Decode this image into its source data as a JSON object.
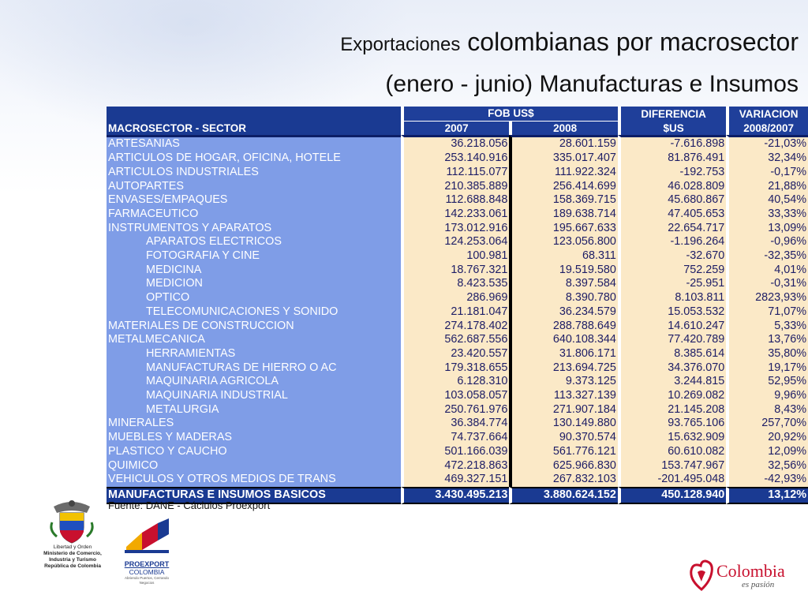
{
  "title": {
    "line1_small": "Exportaciones",
    "line1_large": "colombianas por macrosector",
    "line2": "(enero - junio) Manufacturas e Insumos"
  },
  "table": {
    "header": {
      "col1": "MACROSECTOR - SECTOR",
      "fob_group": "FOB US$",
      "col2": "2007",
      "col3": "2008",
      "col4_top": "DIFERENCIA",
      "col4_bot": "$US",
      "col5_top": "VARIACION",
      "col5_bot": "2008/2007"
    },
    "rows": [
      {
        "sector": "ARTESANIAS",
        "indent": false,
        "y2007": "36.218.056",
        "y2008": "28.601.159",
        "dif": "-7.616.898",
        "var": "-21,03%"
      },
      {
        "sector": "ARTICULOS DE HOGAR, OFICINA, HOTELE",
        "indent": false,
        "y2007": "253.140.916",
        "y2008": "335.017.407",
        "dif": "81.876.491",
        "var": "32,34%"
      },
      {
        "sector": "ARTICULOS INDUSTRIALES",
        "indent": false,
        "y2007": "112.115.077",
        "y2008": "111.922.324",
        "dif": "-192.753",
        "var": "-0,17%"
      },
      {
        "sector": "AUTOPARTES",
        "indent": false,
        "y2007": "210.385.889",
        "y2008": "256.414.699",
        "dif": "46.028.809",
        "var": "21,88%"
      },
      {
        "sector": "ENVASES/EMPAQUES",
        "indent": false,
        "y2007": "112.688.848",
        "y2008": "158.369.715",
        "dif": "45.680.867",
        "var": "40,54%"
      },
      {
        "sector": "FARMACEUTICO",
        "indent": false,
        "y2007": "142.233.061",
        "y2008": "189.638.714",
        "dif": "47.405.653",
        "var": "33,33%"
      },
      {
        "sector": "INSTRUMENTOS Y APARATOS",
        "indent": false,
        "y2007": "173.012.916",
        "y2008": "195.667.633",
        "dif": "22.654.717",
        "var": "13,09%"
      },
      {
        "sector": "APARATOS ELECTRICOS",
        "indent": true,
        "y2007": "124.253.064",
        "y2008": "123.056.800",
        "dif": "-1.196.264",
        "var": "-0,96%"
      },
      {
        "sector": "FOTOGRAFIA Y CINE",
        "indent": true,
        "y2007": "100.981",
        "y2008": "68.311",
        "dif": "-32.670",
        "var": "-32,35%"
      },
      {
        "sector": "MEDICINA",
        "indent": true,
        "y2007": "18.767.321",
        "y2008": "19.519.580",
        "dif": "752.259",
        "var": "4,01%"
      },
      {
        "sector": "MEDICION",
        "indent": true,
        "y2007": "8.423.535",
        "y2008": "8.397.584",
        "dif": "-25.951",
        "var": "-0,31%"
      },
      {
        "sector": "OPTICO",
        "indent": true,
        "y2007": "286.969",
        "y2008": "8.390.780",
        "dif": "8.103.811",
        "var": "2823,93%"
      },
      {
        "sector": "TELECOMUNICACIONES Y SONIDO",
        "indent": true,
        "y2007": "21.181.047",
        "y2008": "36.234.579",
        "dif": "15.053.532",
        "var": "71,07%"
      },
      {
        "sector": "MATERIALES DE CONSTRUCCION",
        "indent": false,
        "y2007": "274.178.402",
        "y2008": "288.788.649",
        "dif": "14.610.247",
        "var": "5,33%"
      },
      {
        "sector": "METALMECANICA",
        "indent": false,
        "y2007": "562.687.556",
        "y2008": "640.108.344",
        "dif": "77.420.789",
        "var": "13,76%"
      },
      {
        "sector": "HERRAMIENTAS",
        "indent": true,
        "y2007": "23.420.557",
        "y2008": "31.806.171",
        "dif": "8.385.614",
        "var": "35,80%"
      },
      {
        "sector": "MANUFACTURAS DE HIERRO O AC",
        "indent": true,
        "y2007": "179.318.655",
        "y2008": "213.694.725",
        "dif": "34.376.070",
        "var": "19,17%"
      },
      {
        "sector": "MAQUINARIA AGRICOLA",
        "indent": true,
        "y2007": "6.128.310",
        "y2008": "9.373.125",
        "dif": "3.244.815",
        "var": "52,95%"
      },
      {
        "sector": "MAQUINARIA INDUSTRIAL",
        "indent": true,
        "y2007": "103.058.057",
        "y2008": "113.327.139",
        "dif": "10.269.082",
        "var": "9,96%"
      },
      {
        "sector": "METALURGIA",
        "indent": true,
        "y2007": "250.761.976",
        "y2008": "271.907.184",
        "dif": "21.145.208",
        "var": "8,43%"
      },
      {
        "sector": "MINERALES",
        "indent": false,
        "y2007": "36.384.774",
        "y2008": "130.149.880",
        "dif": "93.765.106",
        "var": "257,70%"
      },
      {
        "sector": "MUEBLES Y MADERAS",
        "indent": false,
        "y2007": "74.737.664",
        "y2008": "90.370.574",
        "dif": "15.632.909",
        "var": "20,92%"
      },
      {
        "sector": "PLASTICO Y CAUCHO",
        "indent": false,
        "y2007": "501.166.039",
        "y2008": "561.776.121",
        "dif": "60.610.082",
        "var": "12,09%"
      },
      {
        "sector": "QUIMICO",
        "indent": false,
        "y2007": "472.218.863",
        "y2008": "625.966.830",
        "dif": "153.747.967",
        "var": "32,56%"
      },
      {
        "sector": "VEHICULOS Y OTROS MEDIOS DE TRANS",
        "indent": false,
        "y2007": "469.327.151",
        "y2008": "267.832.103",
        "dif": "-201.495.048",
        "var": "-42,93%"
      }
    ],
    "total": {
      "sector": "MANUFACTURAS E INSUMOS BASICOS",
      "y2007": "3.430.495.213",
      "y2008": "3.880.624.152",
      "dif": "450.128.940",
      "var": "13,12%"
    }
  },
  "source": "Fuente: DANE - Cáclulos Proexport",
  "logos": {
    "ministry_lines": [
      "Libertad y Orden",
      "Ministerio de Comercio,",
      "Industria y Turismo",
      "República de Colombia"
    ],
    "proexport_name": "PROEXPORT",
    "proexport_country": "COLOMBIA",
    "proexport_tagline": "Abriendo Puertos, Cerrando Negocios",
    "colombia_brand": "Colombia",
    "colombia_slogan": "es pasión"
  },
  "colors": {
    "header_blue": "#1f3f9a",
    "sector_blue": "#7f9de7",
    "value_cream": "#fbe9c7",
    "brand_red": "#c8102e"
  }
}
